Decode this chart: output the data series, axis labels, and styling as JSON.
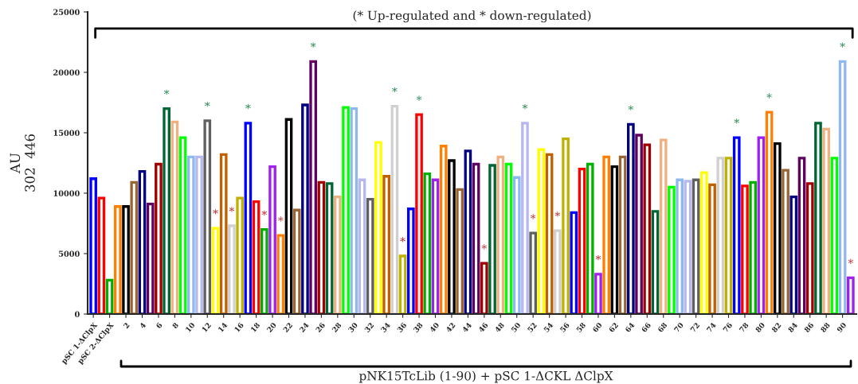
{
  "chart_data": {
    "type": "bar",
    "annotations": [
      "(* Up-regulated and * down-regulated)"
    ],
    "xlabel": "pNK15TcLib (1-90) + pSC 1-ΔCKL ΔClpX",
    "ylabel": "AU\n302  446",
    "categories": [
      "pSC 1-ΔClpX",
      null,
      "pSC 2-ΔClpX",
      null,
      "2",
      null,
      "4",
      null,
      "6",
      null,
      "8",
      null,
      "10",
      null,
      "12",
      null,
      "14",
      null,
      "16",
      null,
      "18",
      null,
      "20",
      null,
      "22",
      null,
      "24",
      null,
      "26",
      null,
      "28",
      null,
      "30",
      null,
      "32",
      null,
      "34",
      null,
      "36",
      null,
      "38",
      null,
      "40",
      null,
      "42",
      null,
      "44",
      null,
      "46",
      null,
      "48",
      null,
      "50",
      null,
      "52",
      null,
      "54",
      null,
      "56",
      null,
      "58",
      null,
      "60",
      null,
      "62",
      null,
      "64",
      null,
      "66",
      null,
      "68",
      null,
      "70",
      null,
      "72",
      null,
      "74",
      null,
      "76",
      null,
      "78",
      null,
      "80",
      null,
      "82",
      null,
      "84",
      null,
      "86",
      null,
      "88",
      null,
      "90",
      null
    ],
    "values": [
      11200,
      9600,
      2800,
      8900,
      8900,
      10900,
      11800,
      9100,
      12400,
      17000,
      15900,
      14600,
      13000,
      13000,
      16000,
      7100,
      13200,
      7300,
      9600,
      15800,
      9300,
      7000,
      12200,
      6500,
      16100,
      8600,
      17300,
      20900,
      10900,
      10800,
      9700,
      17100,
      17000,
      11100,
      9500,
      14200,
      11400,
      17200,
      4800,
      8700,
      16500,
      11600,
      11100,
      13900,
      12700,
      10300,
      13500,
      12400,
      4200,
      12300,
      13000,
      12400,
      11300,
      15800,
      6700,
      13600,
      13200,
      6900,
      14500,
      8400,
      12000,
      12400,
      3300,
      13000,
      12200,
      13000,
      15700,
      14800,
      14000,
      8500,
      14400,
      10500,
      11100,
      11000,
      11100,
      11700,
      10700,
      12900,
      12900,
      14600,
      10600,
      10900,
      14600,
      16700,
      14100,
      11900,
      9700,
      12900,
      10800,
      15800,
      15300,
      12900,
      20900,
      3000
    ],
    "colors": [
      "#0000ff",
      "#ff0000",
      "#00b000",
      "#ff8000",
      "#000000",
      "#996633",
      "#000080",
      "#600060",
      "#a00000",
      "#006633",
      "#f0b080",
      "#00ff00",
      "#90b8f0",
      "#b8b8f0",
      "#606060",
      "#ffff00",
      "#c06000",
      "#d0d0d0",
      "#c0b000",
      "#0000ff",
      "#ff0000",
      "#00b000",
      "#a020f0",
      "#ff8000",
      "#000000",
      "#996633",
      "#000080",
      "#600060",
      "#a00000",
      "#006633",
      "#f0b080",
      "#00ff00",
      "#90b8f0",
      "#b8b8f0",
      "#606060",
      "#ffff00",
      "#c06000",
      "#d0d0d0",
      "#c0b000",
      "#0000ff",
      "#ff0000",
      "#00b000",
      "#a020f0",
      "#ff8000",
      "#000000",
      "#996633",
      "#000080",
      "#600060",
      "#a00000",
      "#006633",
      "#f0b080",
      "#00ff00",
      "#90b8f0",
      "#b8b8f0",
      "#606060",
      "#ffff00",
      "#c06000",
      "#d0d0d0",
      "#c0b000",
      "#0000ff",
      "#ff0000",
      "#00b000",
      "#a020f0",
      "#ff8000",
      "#000000",
      "#996633",
      "#000080",
      "#600060",
      "#a00000",
      "#006633",
      "#f0b080",
      "#00ff00",
      "#90b8f0",
      "#b8b8f0",
      "#606060",
      "#ffff00",
      "#c06000",
      "#d0d0d0",
      "#c0b000",
      "#0000ff",
      "#ff0000",
      "#00b000",
      "#a020f0",
      "#ff8000",
      "#000000",
      "#996633",
      "#000080",
      "#600060",
      "#a00000",
      "#006633",
      "#f0b080",
      "#00ff00",
      "#90b8f0",
      "#a020f0"
    ],
    "value_labels": [
      null,
      null,
      null,
      null,
      null,
      null,
      null,
      null,
      null,
      "*",
      null,
      null,
      null,
      null,
      "*",
      "*",
      null,
      "*",
      null,
      "*",
      null,
      "*",
      null,
      "*",
      null,
      null,
      null,
      "*",
      null,
      null,
      null,
      null,
      null,
      null,
      null,
      null,
      null,
      "*",
      "*",
      null,
      "*",
      null,
      null,
      null,
      null,
      null,
      null,
      null,
      "*",
      null,
      null,
      null,
      null,
      "*",
      "*",
      null,
      null,
      "*",
      null,
      null,
      null,
      null,
      "*",
      null,
      null,
      null,
      "*",
      null,
      null,
      null,
      null,
      null,
      null,
      null,
      null,
      null,
      null,
      null,
      null,
      "*",
      null,
      null,
      null,
      "*",
      null,
      null,
      null,
      null,
      null,
      null,
      null,
      null,
      "*",
      "*"
    ],
    "ylim": [
      0,
      25000
    ],
    "yticks": [
      0,
      5000,
      10000,
      15000,
      20000,
      25000
    ],
    "grid": false,
    "legend": false
  }
}
